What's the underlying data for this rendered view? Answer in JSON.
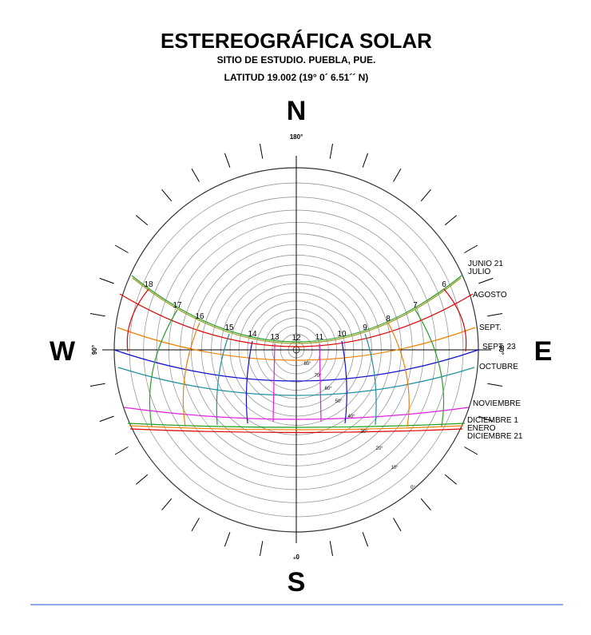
{
  "header": {
    "title": "ESTEREOGRÁFICA SOLAR",
    "subtitle": "SITIO DE ESTUDIO. PUEBLA, PUE.",
    "latitude": "LATITUD 19.002  (19° 0´ 6.51´´ N)"
  },
  "compass": {
    "north": "N",
    "north_deg": "180°",
    "south": "S",
    "south_deg": "0°",
    "west": "W",
    "west_deg": "90°",
    "east": "E",
    "east_deg": "90°"
  },
  "hours": [
    "18",
    "17",
    "16",
    "15",
    "14",
    "13",
    "12",
    "11",
    "10",
    "9",
    "8",
    "7",
    "6"
  ],
  "months": [
    "JUNIO 21",
    "JULIO",
    "AGOSTO",
    "SEPT.",
    "SEPT. 23",
    "OCTUBRE",
    "NOVIEMBRE",
    "DICIEMBRE 1",
    "ENERO",
    "DICIEMBRE 21"
  ],
  "altitudes": [
    "80°",
    "70°",
    "60°",
    "50°",
    "40°",
    "30°",
    "20°",
    "10°",
    "0°"
  ]
}
